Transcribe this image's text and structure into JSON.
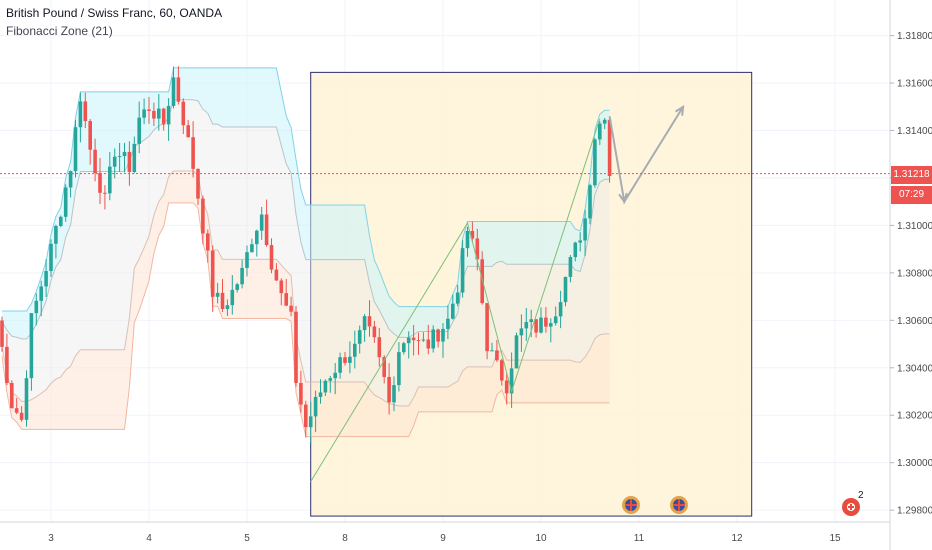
{
  "header": {
    "symbol_line": "British Pound / Swiss Franc, 60, OANDA",
    "indicator": "Fibonacci Zone (21)"
  },
  "last_price": {
    "value": "1.31218",
    "countdown": "07:29"
  },
  "colors": {
    "bull": "#26a69a",
    "bear": "#ef5350",
    "box_fill": "#fff3d6",
    "box_border": "#2a2e6e",
    "zone_top": "#c8f3fb",
    "zone_mid": "#ececec",
    "zone_low": "#fde3d3",
    "arrow": "#a9abb3"
  },
  "events": {
    "badge": "2"
  },
  "chart_data": {
    "type": "candlestick",
    "title": "British Pound / Swiss Franc, 60, OANDA",
    "indicator": "Fibonacci Zone (21)",
    "ylim": [
      1.2975,
      1.3195
    ],
    "y_ticks": [
      "1.31800",
      "1.31600",
      "1.31400",
      "1.31200",
      "1.31000",
      "1.30800",
      "1.30600",
      "1.30400",
      "1.30200",
      "1.30000",
      "1.29800"
    ],
    "x_ticks": [
      "3",
      "4",
      "5",
      "8",
      "9",
      "10",
      "11",
      "12",
      "15"
    ],
    "x_tick_index": [
      10,
      30,
      50,
      70,
      90,
      110,
      130,
      150,
      170
    ],
    "candle_count": 125,
    "waypoints": [
      [
        0,
        1.306
      ],
      [
        3,
        1.3025
      ],
      [
        5,
        1.3018
      ],
      [
        7,
        1.306
      ],
      [
        9,
        1.3075
      ],
      [
        11,
        1.309
      ],
      [
        13,
        1.3107
      ],
      [
        15,
        1.3125
      ],
      [
        17,
        1.3155
      ],
      [
        19,
        1.3132
      ],
      [
        22,
        1.311
      ],
      [
        24,
        1.3132
      ],
      [
        27,
        1.3125
      ],
      [
        29,
        1.3145
      ],
      [
        31,
        1.315
      ],
      [
        34,
        1.3143
      ],
      [
        36,
        1.3162
      ],
      [
        38,
        1.3145
      ],
      [
        40,
        1.3125
      ],
      [
        42,
        1.31
      ],
      [
        44,
        1.3072
      ],
      [
        46,
        1.3065
      ],
      [
        48,
        1.3072
      ],
      [
        50,
        1.308
      ],
      [
        52,
        1.3095
      ],
      [
        54,
        1.3105
      ],
      [
        56,
        1.3085
      ],
      [
        58,
        1.307
      ],
      [
        60,
        1.306
      ],
      [
        61,
        1.3035
      ],
      [
        63,
        1.3015
      ],
      [
        65,
        1.3025
      ],
      [
        67,
        1.3035
      ],
      [
        69,
        1.304
      ],
      [
        71,
        1.3045
      ],
      [
        73,
        1.3048
      ],
      [
        75,
        1.3058
      ],
      [
        77,
        1.305
      ],
      [
        79,
        1.3035
      ],
      [
        80,
        1.3025
      ],
      [
        82,
        1.3048
      ],
      [
        84,
        1.3055
      ],
      [
        86,
        1.305
      ],
      [
        88,
        1.305
      ],
      [
        90,
        1.3055
      ],
      [
        92,
        1.306
      ],
      [
        94,
        1.3075
      ],
      [
        96,
        1.3098
      ],
      [
        98,
        1.3085
      ],
      [
        100,
        1.305
      ],
      [
        102,
        1.304
      ],
      [
        104,
        1.3033
      ],
      [
        106,
        1.3052
      ],
      [
        108,
        1.3058
      ],
      [
        110,
        1.3057
      ],
      [
        112,
        1.306
      ],
      [
        114,
        1.3065
      ],
      [
        116,
        1.3078
      ],
      [
        118,
        1.309
      ],
      [
        120,
        1.3103
      ],
      [
        122,
        1.3138
      ],
      [
        124,
        1.3148
      ],
      [
        125,
        1.3122
      ]
    ],
    "annotations": {
      "box": {
        "x": [
          63,
          153
        ],
        "y": [
          1.29775,
          1.31645
        ]
      },
      "zigzag": [
        [
          63,
          1.2992
        ],
        [
          95,
          1.3101
        ],
        [
          104,
          1.303
        ],
        [
          122,
          1.3145
        ]
      ],
      "projection": [
        [
          124,
          1.3146
        ],
        [
          127,
          1.311
        ],
        [
          139,
          1.315
        ]
      ]
    }
  }
}
